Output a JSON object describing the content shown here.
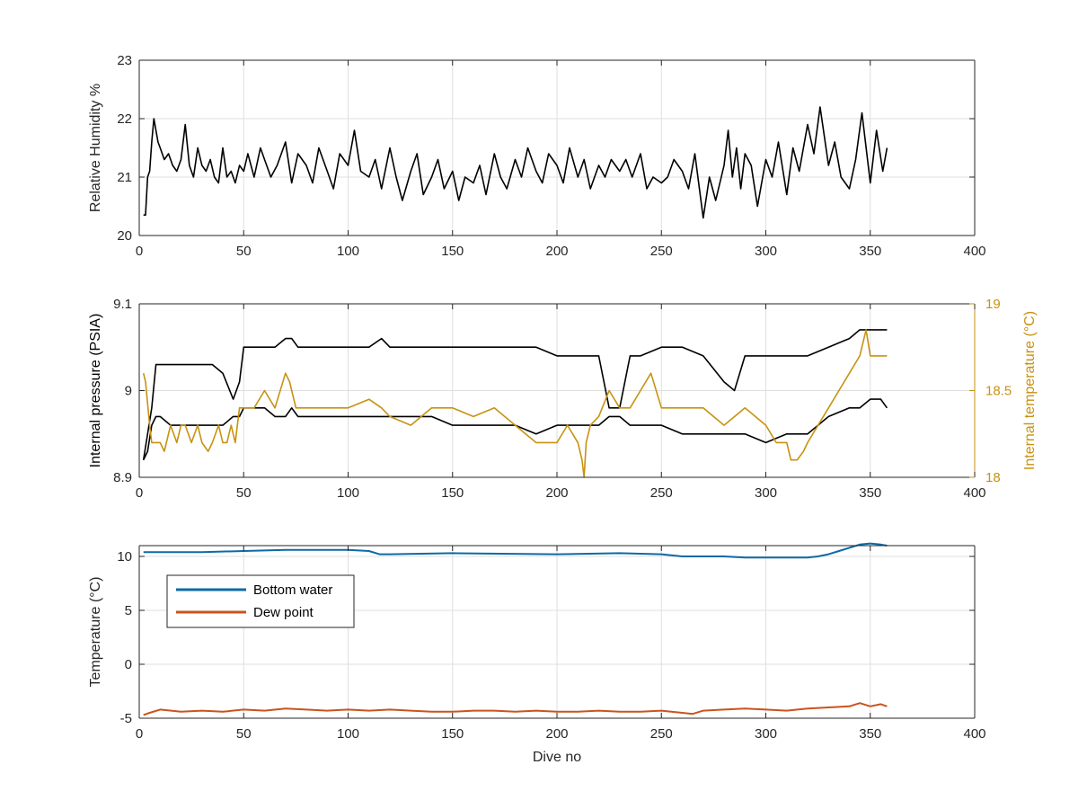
{
  "colors": {
    "black": "#000000",
    "gold": "#c89210",
    "blue": "#0d6aa6",
    "orange": "#c9541d",
    "axis": "#262626",
    "grid": "#dfdfdf"
  },
  "chart_data": [
    {
      "type": "line",
      "title": "",
      "xlabel": "",
      "ylabel": "Relative Humidity %",
      "xlim": [
        0,
        400
      ],
      "ylim": [
        20,
        23
      ],
      "xticks": [
        0,
        50,
        100,
        150,
        200,
        250,
        300,
        350,
        400
      ],
      "xtick_labels": [
        "0",
        "50",
        "100",
        "150",
        "200",
        "250",
        "300",
        "350",
        "400"
      ],
      "yticks": [
        20,
        21,
        22,
        23
      ],
      "ytick_labels": [
        "20",
        "21",
        "22",
        "23"
      ],
      "grid": true,
      "series": [
        {
          "color": "black",
          "x": [
            2,
            3,
            4,
            5,
            6,
            7,
            8,
            9,
            10,
            12,
            14,
            16,
            18,
            20,
            22,
            24,
            26,
            28,
            30,
            32,
            34,
            36,
            38,
            40,
            42,
            44,
            46,
            48,
            50,
            52,
            55,
            58,
            60,
            63,
            66,
            70,
            73,
            76,
            80,
            83,
            86,
            90,
            93,
            96,
            100,
            103,
            106,
            110,
            113,
            116,
            120,
            123,
            126,
            130,
            133,
            136,
            140,
            143,
            146,
            150,
            153,
            156,
            160,
            163,
            166,
            170,
            173,
            176,
            180,
            183,
            186,
            190,
            193,
            196,
            200,
            203,
            206,
            210,
            213,
            216,
            220,
            223,
            226,
            230,
            233,
            236,
            240,
            243,
            246,
            250,
            253,
            256,
            260,
            263,
            266,
            270,
            273,
            276,
            280,
            282,
            284,
            286,
            288,
            290,
            293,
            296,
            300,
            303,
            306,
            310,
            313,
            316,
            320,
            323,
            326,
            330,
            333,
            336,
            340,
            343,
            346,
            350,
            353,
            356,
            358
          ],
          "y": [
            20.35,
            20.35,
            21.0,
            21.1,
            21.6,
            22.0,
            21.8,
            21.6,
            21.5,
            21.3,
            21.4,
            21.2,
            21.1,
            21.3,
            21.9,
            21.2,
            21.0,
            21.5,
            21.2,
            21.1,
            21.3,
            21.0,
            20.9,
            21.5,
            21.0,
            21.1,
            20.9,
            21.2,
            21.1,
            21.4,
            21.0,
            21.5,
            21.3,
            21.0,
            21.2,
            21.6,
            20.9,
            21.4,
            21.2,
            20.9,
            21.5,
            21.1,
            20.8,
            21.4,
            21.2,
            21.8,
            21.1,
            21.0,
            21.3,
            20.8,
            21.5,
            21.0,
            20.6,
            21.1,
            21.4,
            20.7,
            21.0,
            21.3,
            20.8,
            21.1,
            20.6,
            21.0,
            20.9,
            21.2,
            20.7,
            21.4,
            21.0,
            20.8,
            21.3,
            21.0,
            21.5,
            21.1,
            20.9,
            21.4,
            21.2,
            20.9,
            21.5,
            21.0,
            21.3,
            20.8,
            21.2,
            21.0,
            21.3,
            21.1,
            21.3,
            21.0,
            21.4,
            20.8,
            21.0,
            20.9,
            21.0,
            21.3,
            21.1,
            20.8,
            21.4,
            20.3,
            21.0,
            20.6,
            21.2,
            21.8,
            21.0,
            21.5,
            20.8,
            21.4,
            21.2,
            20.5,
            21.3,
            21.0,
            21.6,
            20.7,
            21.5,
            21.1,
            21.9,
            21.4,
            22.2,
            21.2,
            21.6,
            21.0,
            20.8,
            21.3,
            22.1,
            20.9,
            21.8,
            21.1,
            21.5
          ]
        }
      ]
    },
    {
      "type": "line",
      "title": "",
      "xlabel": "",
      "ylabel": "Internal pressure (PSIA)",
      "y2label": "Internal temperature (°C)",
      "xlim": [
        0,
        400
      ],
      "ylim": [
        8.9,
        9.1
      ],
      "y2lim": [
        18,
        19
      ],
      "xticks": [
        0,
        50,
        100,
        150,
        200,
        250,
        300,
        350,
        400
      ],
      "xtick_labels": [
        "0",
        "50",
        "100",
        "150",
        "200",
        "250",
        "300",
        "350",
        "400"
      ],
      "yticks": [
        8.9,
        9,
        9.1
      ],
      "ytick_labels": [
        "8.9",
        "9",
        "9.1"
      ],
      "y2ticks": [
        18,
        18.5,
        19
      ],
      "y2tick_labels": [
        "18",
        "18.5",
        "19"
      ],
      "grid": true,
      "series": [
        {
          "axis": "left",
          "color": "black",
          "x": [
            2,
            4,
            6,
            8,
            10,
            15,
            20,
            25,
            30,
            35,
            40,
            45,
            48,
            50,
            55,
            60,
            65,
            70,
            73,
            76,
            80,
            90,
            100,
            110,
            116,
            120,
            130,
            140,
            150,
            160,
            170,
            180,
            190,
            200,
            210,
            220,
            225,
            230,
            235,
            240,
            250,
            260,
            270,
            280,
            285,
            290,
            300,
            310,
            320,
            330,
            340,
            345,
            350,
            355,
            358
          ],
          "y": [
            8.92,
            8.95,
            8.98,
            9.03,
            9.03,
            9.03,
            9.03,
            9.03,
            9.03,
            9.03,
            9.02,
            8.99,
            9.01,
            9.05,
            9.05,
            9.05,
            9.05,
            9.06,
            9.06,
            9.05,
            9.05,
            9.05,
            9.05,
            9.05,
            9.06,
            9.05,
            9.05,
            9.05,
            9.05,
            9.05,
            9.05,
            9.05,
            9.05,
            9.04,
            9.04,
            9.04,
            8.98,
            8.98,
            9.04,
            9.04,
            9.05,
            9.05,
            9.04,
            9.01,
            9.0,
            9.04,
            9.04,
            9.04,
            9.04,
            9.05,
            9.06,
            9.07,
            9.07,
            9.07,
            9.07
          ]
        },
        {
          "axis": "left",
          "color": "black",
          "x": [
            2,
            4,
            6,
            8,
            10,
            15,
            20,
            25,
            30,
            35,
            40,
            45,
            48,
            50,
            55,
            60,
            65,
            70,
            73,
            76,
            80,
            90,
            100,
            110,
            116,
            120,
            130,
            140,
            150,
            160,
            170,
            180,
            190,
            200,
            210,
            220,
            225,
            230,
            235,
            240,
            250,
            260,
            270,
            280,
            285,
            290,
            300,
            310,
            320,
            330,
            340,
            345,
            350,
            355,
            358
          ],
          "y": [
            8.92,
            8.93,
            8.96,
            8.97,
            8.97,
            8.96,
            8.96,
            8.96,
            8.96,
            8.96,
            8.96,
            8.97,
            8.97,
            8.98,
            8.98,
            8.98,
            8.97,
            8.97,
            8.98,
            8.97,
            8.97,
            8.97,
            8.97,
            8.97,
            8.97,
            8.97,
            8.97,
            8.97,
            8.96,
            8.96,
            8.96,
            8.96,
            8.95,
            8.96,
            8.96,
            8.96,
            8.97,
            8.97,
            8.96,
            8.96,
            8.96,
            8.95,
            8.95,
            8.95,
            8.95,
            8.95,
            8.94,
            8.95,
            8.95,
            8.97,
            8.98,
            8.98,
            8.99,
            8.99,
            8.98
          ]
        },
        {
          "axis": "right",
          "color": "gold",
          "x": [
            2,
            3,
            5,
            6,
            8,
            10,
            12,
            15,
            18,
            20,
            22,
            25,
            28,
            30,
            33,
            35,
            38,
            40,
            42,
            44,
            46,
            48,
            50,
            55,
            60,
            65,
            70,
            72,
            75,
            80,
            90,
            100,
            110,
            116,
            120,
            130,
            140,
            150,
            160,
            170,
            180,
            190,
            200,
            205,
            210,
            212,
            213,
            214,
            216,
            220,
            225,
            230,
            235,
            240,
            245,
            250,
            260,
            270,
            280,
            290,
            300,
            305,
            310,
            312,
            315,
            318,
            320,
            325,
            330,
            335,
            340,
            345,
            348,
            350,
            355,
            358
          ],
          "y": [
            18.6,
            18.55,
            18.3,
            18.2,
            18.2,
            18.2,
            18.15,
            18.3,
            18.2,
            18.3,
            18.3,
            18.2,
            18.3,
            18.2,
            18.15,
            18.2,
            18.3,
            18.2,
            18.2,
            18.3,
            18.2,
            18.4,
            18.4,
            18.4,
            18.5,
            18.4,
            18.6,
            18.55,
            18.4,
            18.4,
            18.4,
            18.4,
            18.45,
            18.4,
            18.35,
            18.3,
            18.4,
            18.4,
            18.35,
            18.4,
            18.3,
            18.2,
            18.2,
            18.3,
            18.2,
            18.1,
            18.0,
            18.2,
            18.3,
            18.35,
            18.5,
            18.4,
            18.4,
            18.5,
            18.6,
            18.4,
            18.4,
            18.4,
            18.3,
            18.4,
            18.3,
            18.2,
            18.2,
            18.1,
            18.1,
            18.15,
            18.2,
            18.3,
            18.4,
            18.5,
            18.6,
            18.7,
            18.85,
            18.7,
            18.7,
            18.7
          ]
        }
      ]
    },
    {
      "type": "line",
      "title": "",
      "xlabel": "Dive no",
      "ylabel": "Temperature (°C)",
      "xlim": [
        0,
        400
      ],
      "ylim": [
        -5,
        11
      ],
      "xticks": [
        0,
        50,
        100,
        150,
        200,
        250,
        300,
        350,
        400
      ],
      "xtick_labels": [
        "0",
        "50",
        "100",
        "150",
        "200",
        "250",
        "300",
        "350",
        "400"
      ],
      "yticks": [
        -5,
        0,
        5,
        10
      ],
      "ytick_labels": [
        "-5",
        "0",
        "5",
        "10"
      ],
      "grid": true,
      "legend_position": "top-left",
      "series": [
        {
          "name": "Bottom water",
          "color": "blue",
          "x": [
            2,
            10,
            20,
            30,
            50,
            70,
            100,
            110,
            115,
            120,
            150,
            200,
            230,
            250,
            260,
            270,
            280,
            290,
            300,
            310,
            320,
            325,
            330,
            335,
            340,
            345,
            350,
            355,
            358
          ],
          "y": [
            10.4,
            10.4,
            10.4,
            10.4,
            10.5,
            10.6,
            10.6,
            10.5,
            10.2,
            10.2,
            10.3,
            10.2,
            10.3,
            10.2,
            10.0,
            10.0,
            10.0,
            9.9,
            9.9,
            9.9,
            9.9,
            10.0,
            10.2,
            10.5,
            10.8,
            11.1,
            11.2,
            11.1,
            11.0
          ]
        },
        {
          "name": "Dew point",
          "color": "orange",
          "x": [
            2,
            5,
            10,
            20,
            30,
            40,
            50,
            60,
            70,
            80,
            90,
            100,
            110,
            120,
            130,
            140,
            150,
            160,
            170,
            180,
            190,
            200,
            210,
            220,
            230,
            240,
            250,
            260,
            265,
            270,
            280,
            290,
            300,
            310,
            320,
            330,
            340,
            345,
            350,
            355,
            358
          ],
          "y": [
            -4.7,
            -4.5,
            -4.2,
            -4.4,
            -4.3,
            -4.4,
            -4.2,
            -4.3,
            -4.1,
            -4.2,
            -4.3,
            -4.2,
            -4.3,
            -4.2,
            -4.3,
            -4.4,
            -4.4,
            -4.3,
            -4.3,
            -4.4,
            -4.3,
            -4.4,
            -4.4,
            -4.3,
            -4.4,
            -4.4,
            -4.3,
            -4.5,
            -4.6,
            -4.3,
            -4.2,
            -4.1,
            -4.2,
            -4.3,
            -4.1,
            -4.0,
            -3.9,
            -3.6,
            -3.9,
            -3.7,
            -3.9
          ]
        }
      ]
    }
  ]
}
